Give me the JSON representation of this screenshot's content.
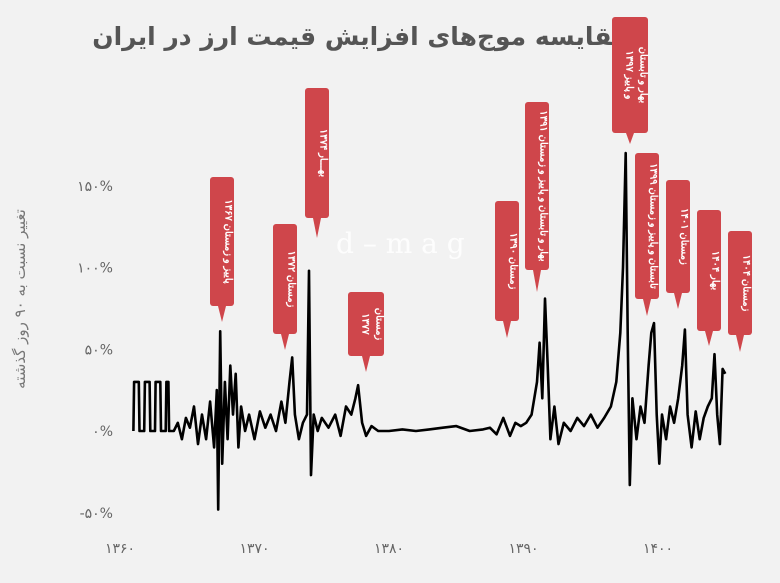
{
  "chart_data": {
    "type": "line",
    "title": "مقایسه موج‌های افزایش قیمت ارز در ایران",
    "ylabel": "تغییر نسبت به ۹۰ روز گذشته",
    "xlabel": "",
    "xlim": [
      1359,
      1407
    ],
    "ylim": [
      -60,
      175
    ],
    "grid": false,
    "x_ticks": [
      1360,
      1370,
      1380,
      1390,
      1400
    ],
    "x_tick_labels": [
      "۱۳۶۰",
      "۱۳۷۰",
      "۱۳۸۰",
      "۱۳۹۰",
      "۱۴۰۰"
    ],
    "y_ticks": [
      -50,
      0,
      50,
      100,
      150
    ],
    "y_tick_labels": [
      "-۵۰%",
      "۰%",
      "۵۰%",
      "۱۰۰%",
      "۱۵۰%"
    ],
    "line_color": "#000000",
    "annotation_color": "#cf464b",
    "x": [
      1361.0,
      1361.05,
      1361.4,
      1361.45,
      1361.8,
      1361.85,
      1362.2,
      1362.25,
      1362.6,
      1362.65,
      1363.0,
      1363.05,
      1363.4,
      1363.45,
      1363.6,
      1363.65,
      1364.0,
      1364.3,
      1364.6,
      1364.9,
      1365.2,
      1365.5,
      1365.8,
      1366.1,
      1366.4,
      1366.7,
      1367.0,
      1367.2,
      1367.3,
      1367.45,
      1367.6,
      1367.8,
      1368.0,
      1368.2,
      1368.4,
      1368.6,
      1368.8,
      1369.0,
      1369.3,
      1369.6,
      1370.0,
      1370.4,
      1370.8,
      1371.2,
      1371.6,
      1372.0,
      1372.3,
      1372.6,
      1372.8,
      1373.0,
      1373.3,
      1373.6,
      1373.9,
      1374.05,
      1374.2,
      1374.4,
      1374.7,
      1375.0,
      1375.5,
      1376.0,
      1376.4,
      1376.8,
      1377.2,
      1377.5,
      1377.7,
      1378.0,
      1378.3,
      1378.7,
      1379.2,
      1380,
      1381,
      1382,
      1383,
      1384,
      1385,
      1386,
      1387,
      1387.5,
      1388,
      1388.5,
      1389,
      1389.4,
      1389.8,
      1390.2,
      1390.6,
      1391.0,
      1391.2,
      1391.4,
      1391.6,
      1391.8,
      1392.0,
      1392.3,
      1392.6,
      1393,
      1393.5,
      1394,
      1394.5,
      1395,
      1395.5,
      1396,
      1396.5,
      1396.9,
      1397.2,
      1397.4,
      1397.6,
      1397.75,
      1397.9,
      1398.1,
      1398.4,
      1398.7,
      1399.0,
      1399.3,
      1399.5,
      1399.7,
      1399.9,
      1400.1,
      1400.3,
      1400.6,
      1400.9,
      1401.2,
      1401.5,
      1401.8,
      1402.0,
      1402.2,
      1402.5,
      1402.8,
      1403.1,
      1403.4,
      1403.7,
      1404.0,
      1404.2,
      1404.4,
      1404.6,
      1404.8,
      1405.0
    ],
    "y": [
      0,
      30,
      30,
      0,
      0,
      30,
      30,
      0,
      0,
      30,
      30,
      0,
      0,
      30,
      30,
      0,
      0,
      5,
      -5,
      8,
      2,
      15,
      -8,
      10,
      -5,
      18,
      -10,
      25,
      -48,
      61,
      -20,
      30,
      -5,
      40,
      10,
      35,
      -10,
      15,
      0,
      10,
      -5,
      12,
      2,
      10,
      0,
      18,
      5,
      30,
      45,
      10,
      -5,
      5,
      10,
      98,
      -27,
      10,
      0,
      8,
      2,
      10,
      -3,
      15,
      10,
      20,
      28,
      5,
      -3,
      3,
      0,
      0,
      1,
      0,
      1,
      2,
      3,
      0,
      1,
      2,
      -2,
      8,
      -3,
      5,
      3,
      5,
      10,
      30,
      54,
      20,
      81,
      40,
      -5,
      15,
      -8,
      5,
      0,
      8,
      3,
      10,
      2,
      8,
      15,
      30,
      60,
      100,
      170,
      60,
      -33,
      20,
      -5,
      15,
      5,
      40,
      60,
      66,
      10,
      -20,
      10,
      -5,
      15,
      5,
      20,
      40,
      62,
      10,
      -10,
      12,
      -5,
      8,
      15,
      20,
      47,
      10,
      -8,
      38,
      35
    ],
    "annotations": [
      {
        "text": "پاییز و زمستان ۱۳۶۷"
      },
      {
        "text": "زمستان ۱۳۷۲"
      },
      {
        "text": "بهـــار ۱۳۷۴"
      },
      {
        "text": "زمستان ۱۳۷۷"
      },
      {
        "text": "زمستان ۱۳۹۰"
      },
      {
        "text": "بهار و تابستان و پاییز و زمستان ۱۳۹۱"
      },
      {
        "text": "بهار و تابستان و پاییز ۱۳۹۷"
      },
      {
        "text": "تابستان و پاییز و زمستان ۱۳۹۹"
      },
      {
        "text": "زمستان ۱۴۰۱"
      },
      {
        "text": "بهار ۱۴۰۴"
      },
      {
        "text": "زمستان ۱۴۰۴"
      }
    ]
  },
  "watermark": "d – m a g"
}
